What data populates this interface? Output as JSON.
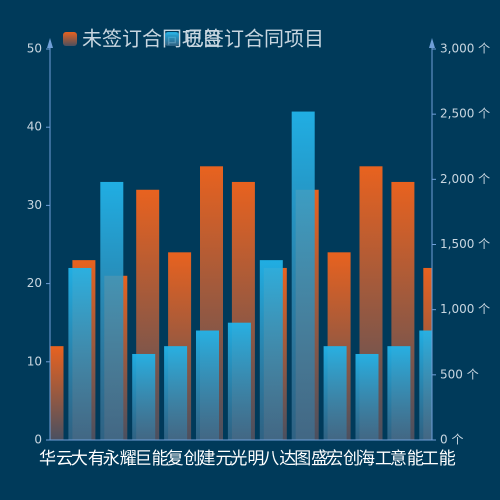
{
  "chart_data": {
    "type": "bar",
    "categories": [
      "华云",
      "大有",
      "永耀",
      "巨能",
      "复创",
      "建元",
      "光明",
      "八达",
      "图盛",
      "宏创",
      "海工",
      "意能",
      "工能"
    ],
    "series": [
      {
        "name": "未签订合同项目",
        "color": "#e8621f",
        "values": [
          12,
          23,
          21,
          32,
          24,
          35,
          33,
          22,
          32,
          24,
          35,
          33,
          22
        ]
      },
      {
        "name": "已签订合同项目",
        "color": "#22b4ea",
        "axis": "y2",
        "values": [
          null,
          1320,
          1980,
          660,
          720,
          840,
          900,
          1380,
          2520,
          720,
          660,
          720,
          840
        ]
      }
    ],
    "ylim": [
      0,
      50
    ],
    "yticks": [
      0,
      10,
      20,
      30,
      40,
      50
    ],
    "y2lim": [
      0,
      3000
    ],
    "y2ticks": [
      {
        "value": 0,
        "label": "0 个"
      },
      {
        "value": 500,
        "label": "500 个"
      },
      {
        "value": 1000,
        "label": "1,000 个"
      },
      {
        "value": 1500,
        "label": "1,500 个"
      },
      {
        "value": 2000,
        "label": "2,000 个"
      },
      {
        "value": 2500,
        "label": "2,500 个"
      },
      {
        "value": 3000,
        "label": "3,000 个"
      }
    ]
  }
}
